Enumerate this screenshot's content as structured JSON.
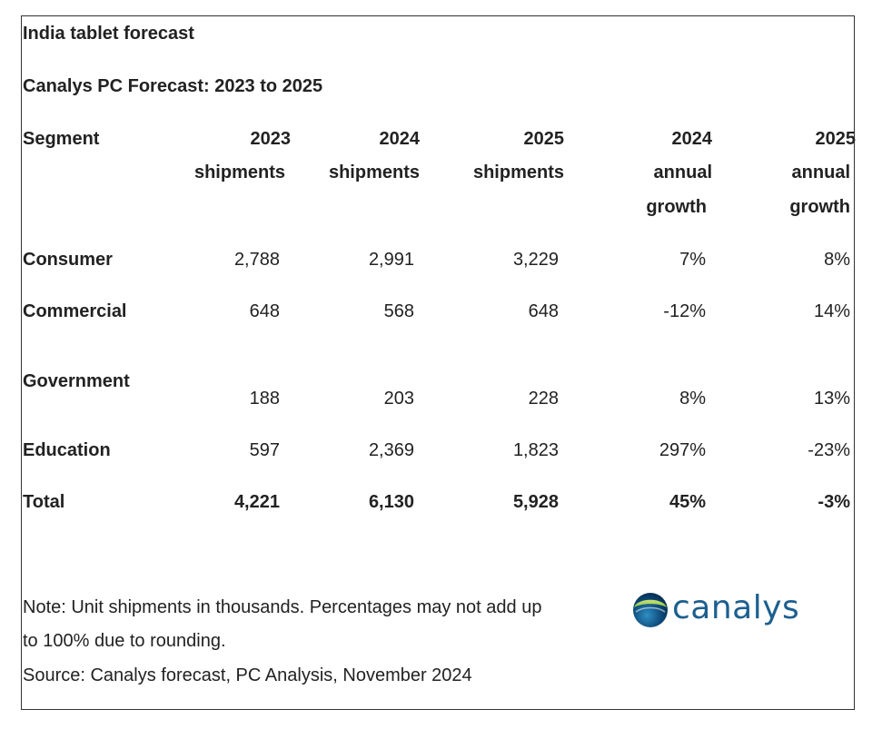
{
  "chart_data": {
    "type": "table",
    "title": "India tablet forecast",
    "subtitle": "Canalys PC Forecast: 2023 to 2025",
    "columns": [
      {
        "line1": "Segment",
        "line2": "",
        "line3": ""
      },
      {
        "line1": "2023",
        "line2": "shipments",
        "line3": ""
      },
      {
        "line1": "2024",
        "line2": "shipments",
        "line3": ""
      },
      {
        "line1": "2025",
        "line2": "shipments",
        "line3": ""
      },
      {
        "line1": "2024",
        "line2": "annual",
        "line3": "growth"
      },
      {
        "line1": "2025",
        "line2": "annual",
        "line3": "growth"
      }
    ],
    "rows": [
      {
        "segment": "Consumer",
        "values": [
          "2,788",
          "2,991",
          "3,229",
          "7%",
          "8%"
        ]
      },
      {
        "segment": "Commercial",
        "values": [
          "648",
          "568",
          "648",
          "-12%",
          "14%"
        ]
      },
      {
        "segment": "Government",
        "values": [
          "188",
          "203",
          "228",
          "8%",
          "13%"
        ]
      },
      {
        "segment": "Education",
        "values": [
          "597",
          "2,369",
          "1,823",
          "297%",
          "-23%"
        ]
      },
      {
        "segment": "Total",
        "values": [
          "4,221",
          "6,130",
          "5,928",
          "45%",
          "-3%"
        ]
      }
    ],
    "note_line1": "Note: Unit shipments in thousands. Percentages may not add up",
    "note_line2": "to 100% due to rounding.",
    "source": "Source: Canalys forecast, PC Analysis, November 2024"
  },
  "logo": {
    "text": "canalys",
    "icon": "canalys-globe-icon",
    "text_color": "#1c5f8f",
    "globe_dark": "#0e4a7a",
    "globe_green": "#8dc63f"
  }
}
